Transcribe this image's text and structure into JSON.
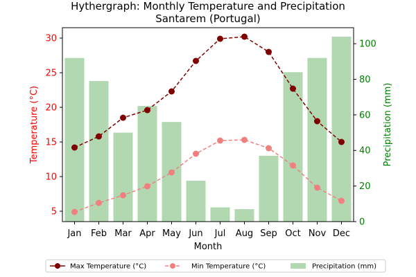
{
  "chart_data": {
    "type": "bar+line",
    "title": "Hythergraph: Monthly Temperature and Precipitation",
    "subtitle": "Santarem (Portugal)",
    "xlabel": "Month",
    "ylabel_left": "Temperature (°C)",
    "ylabel_right": "Precipitation (mm)",
    "categories": [
      "Jan",
      "Feb",
      "Mar",
      "Apr",
      "May",
      "Jun",
      "Jul",
      "Aug",
      "Sep",
      "Oct",
      "Nov",
      "Dec"
    ],
    "ylim_left": [
      3.5,
      31.5
    ],
    "ylim_right": [
      0,
      109
    ],
    "yticks_left": [
      5,
      10,
      15,
      20,
      25,
      30
    ],
    "yticks_right": [
      0,
      20,
      40,
      60,
      80,
      100
    ],
    "grid": false,
    "legend_position": "bottom",
    "colors": {
      "max": "#800000",
      "min": "#f08080",
      "precip": "#b2d8b2",
      "left_axis": "#ff0000",
      "right_axis": "#008000"
    },
    "series": [
      {
        "name": "Max Temperature (°C)",
        "kind": "line",
        "axis": "left",
        "values": [
          14.2,
          15.8,
          18.5,
          19.6,
          22.3,
          26.7,
          29.9,
          30.2,
          28.0,
          22.7,
          18.0,
          15.0
        ]
      },
      {
        "name": "Min Temperature (°C)",
        "kind": "line",
        "axis": "left",
        "values": [
          4.9,
          6.2,
          7.3,
          8.6,
          10.6,
          13.3,
          15.2,
          15.3,
          14.1,
          11.6,
          8.4,
          6.5
        ]
      },
      {
        "name": "Precipitation (mm)",
        "kind": "bar",
        "axis": "right",
        "values": [
          92,
          79,
          50,
          65,
          56,
          23,
          8,
          7,
          37,
          84,
          92,
          104
        ]
      }
    ]
  }
}
